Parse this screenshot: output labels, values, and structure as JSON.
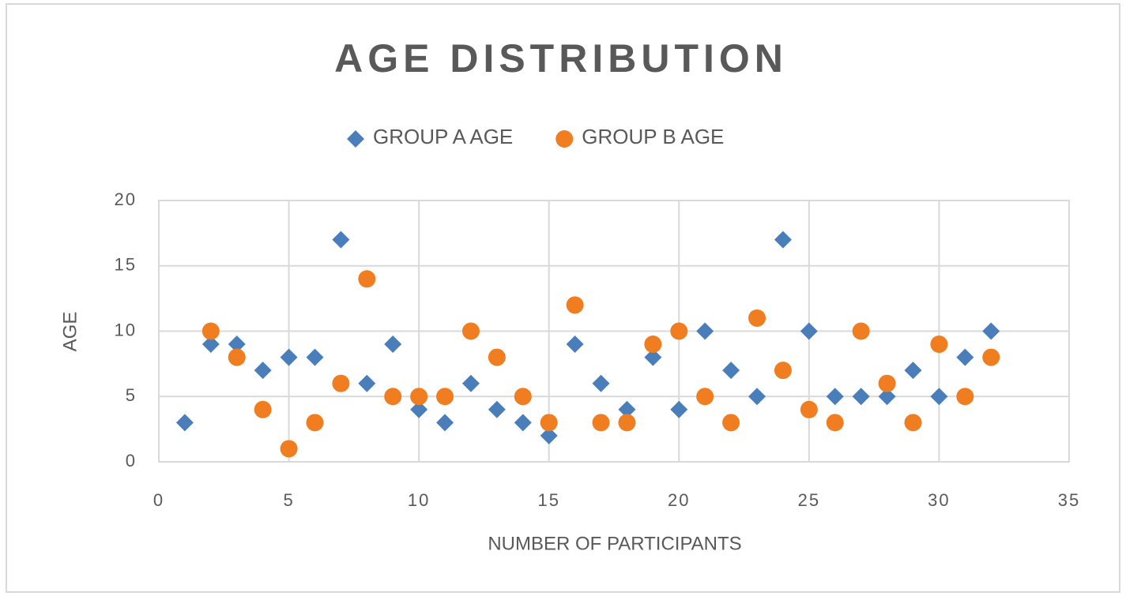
{
  "chart_data": {
    "type": "scatter",
    "title": "AGE DISTRIBUTION",
    "xlabel": "NUMBER OF PARTICIPANTS",
    "ylabel": "AGE",
    "x": [
      1,
      2,
      3,
      4,
      5,
      6,
      7,
      8,
      9,
      10,
      11,
      12,
      13,
      14,
      15,
      16,
      17,
      18,
      19,
      20,
      21,
      22,
      23,
      24,
      25,
      26,
      27,
      28,
      29,
      30,
      31,
      32
    ],
    "series": [
      {
        "name": "GROUP A AGE",
        "color": "#4a7ebb",
        "marker": "diamond",
        "values": [
          3,
          9,
          9,
          7,
          8,
          8,
          17,
          6,
          9,
          4,
          3,
          6,
          4,
          3,
          2,
          9,
          6,
          4,
          8,
          4,
          10,
          7,
          5,
          17,
          10,
          5,
          5,
          5,
          7,
          5,
          8,
          10
        ]
      },
      {
        "name": "GROUP B AGE",
        "color": "#f07d1f",
        "marker": "circle",
        "values": [
          null,
          10,
          8,
          4,
          1,
          3,
          6,
          14,
          5,
          5,
          5,
          10,
          8,
          5,
          3,
          12,
          3,
          3,
          9,
          10,
          5,
          3,
          11,
          7,
          4,
          3,
          10,
          6,
          3,
          9,
          5,
          8
        ]
      }
    ],
    "xlim": [
      0,
      35
    ],
    "xticks": [
      0,
      5,
      10,
      15,
      20,
      25,
      30,
      35
    ],
    "ylim": [
      0,
      20
    ],
    "yticks": [
      0,
      5,
      10,
      15,
      20
    ],
    "grid": true,
    "legend": "top"
  }
}
